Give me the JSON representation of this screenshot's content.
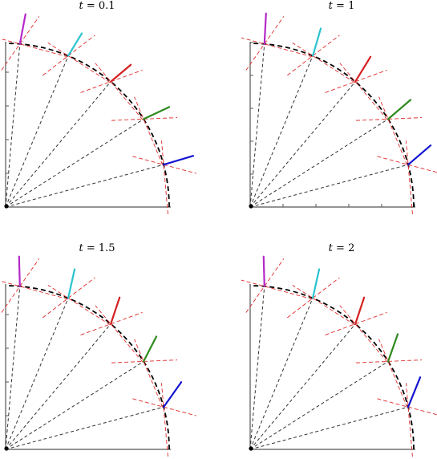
{
  "panels": [
    {
      "t_label": "t = 0.1",
      "t_symbol": "t",
      "t_value": "0.1"
    },
    {
      "t_label": "t = 1",
      "t_symbol": "t",
      "t_value": "1"
    },
    {
      "t_label": "t = 1.5",
      "t_symbol": "t",
      "t_value": "1.5"
    },
    {
      "t_label": "t = 2",
      "t_symbol": "t",
      "t_value": "2"
    }
  ],
  "colors": {
    "rays": [
      "#1515d0",
      "#2e8a1e",
      "#d42020",
      "#29c3cf",
      "#b428c8"
    ],
    "guide": "#e02a2a",
    "arc": "#000000",
    "axis": "#555555"
  }
}
